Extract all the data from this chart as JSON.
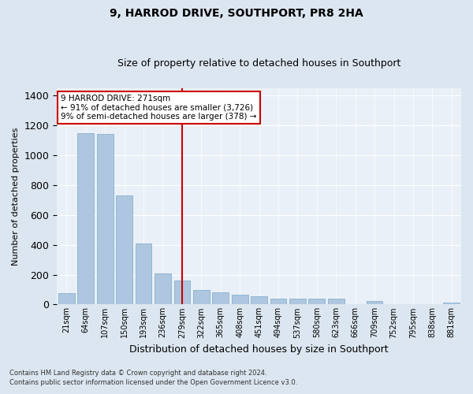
{
  "title": "9, HARROD DRIVE, SOUTHPORT, PR8 2HA",
  "subtitle": "Size of property relative to detached houses in Southport",
  "xlabel": "Distribution of detached houses by size in Southport",
  "ylabel": "Number of detached properties",
  "categories": [
    "21sqm",
    "64sqm",
    "107sqm",
    "150sqm",
    "193sqm",
    "236sqm",
    "279sqm",
    "322sqm",
    "365sqm",
    "408sqm",
    "451sqm",
    "494sqm",
    "537sqm",
    "580sqm",
    "623sqm",
    "666sqm",
    "709sqm",
    "752sqm",
    "795sqm",
    "838sqm",
    "881sqm"
  ],
  "values": [
    75,
    1150,
    1140,
    730,
    410,
    210,
    160,
    95,
    80,
    65,
    55,
    40,
    40,
    40,
    40,
    0,
    25,
    0,
    0,
    0,
    15
  ],
  "bar_color": "#aec6df",
  "bar_edgecolor": "#7aaac8",
  "highlight_index": 6,
  "annotation_text": "9 HARROD DRIVE: 271sqm\n← 91% of detached houses are smaller (3,726)\n9% of semi-detached houses are larger (378) →",
  "annotation_box_color": "#ffffff",
  "annotation_border_color": "#cc0000",
  "vline_color": "#cc0000",
  "footer_line1": "Contains HM Land Registry data © Crown copyright and database right 2024.",
  "footer_line2": "Contains public sector information licensed under the Open Government Licence v3.0.",
  "bg_color": "#dce6f0",
  "plot_bg_color": "#eaf0f7",
  "ylim": [
    0,
    1450
  ],
  "title_fontsize": 10,
  "subtitle_fontsize": 9,
  "ylabel_fontsize": 8,
  "xlabel_fontsize": 9
}
